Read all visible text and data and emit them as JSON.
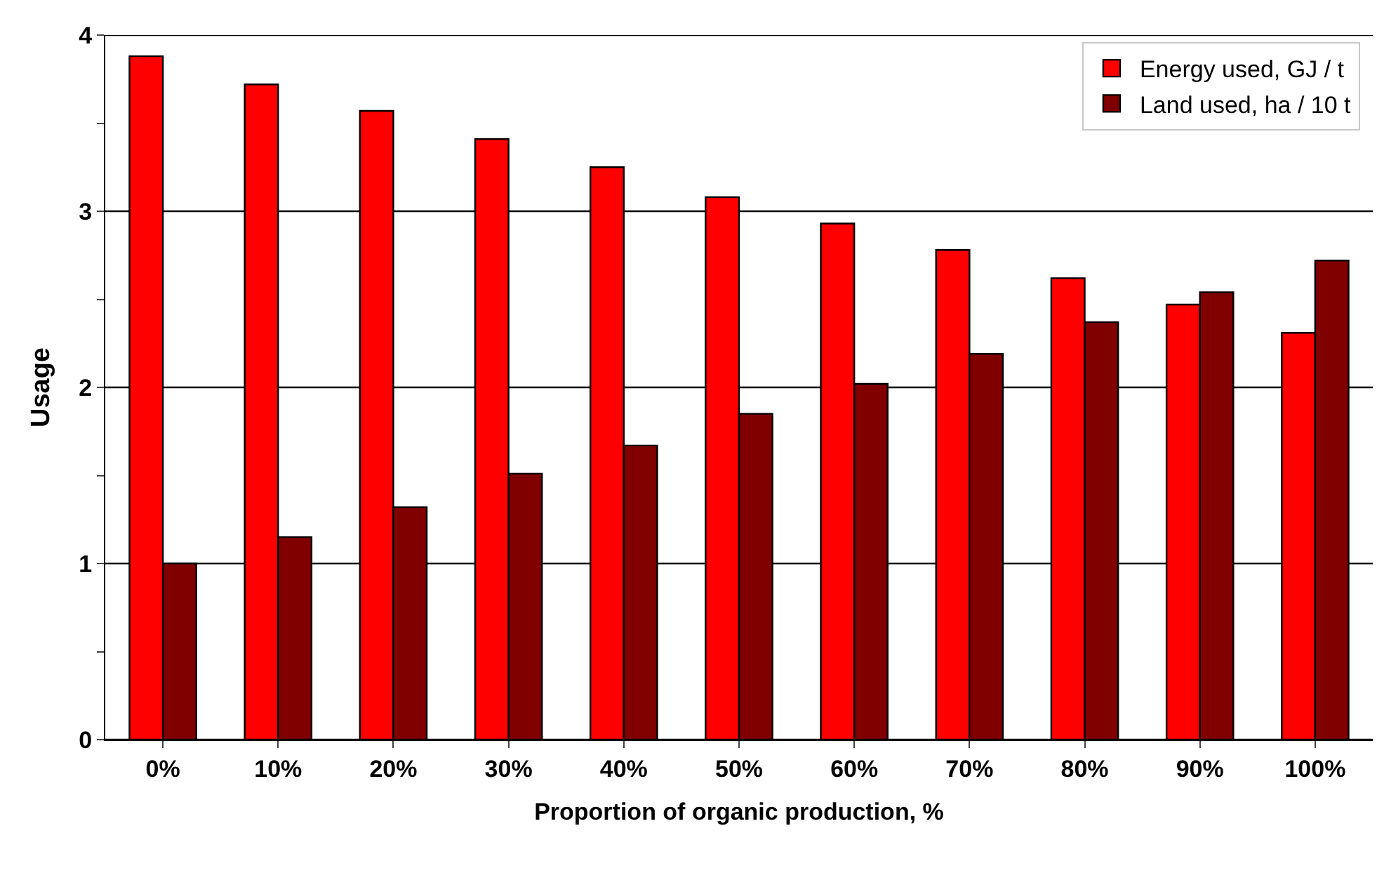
{
  "chart_data": {
    "type": "bar",
    "xlabel": "Proportion of organic production, %",
    "ylabel": "Usage",
    "categories": [
      "0%",
      "10%",
      "20%",
      "30%",
      "40%",
      "50%",
      "60%",
      "70%",
      "80%",
      "90%",
      "100%"
    ],
    "series": [
      {
        "name": "Energy used, GJ / t",
        "color": "#ff0000",
        "values": [
          3.88,
          3.72,
          3.57,
          3.41,
          3.25,
          3.08,
          2.93,
          2.78,
          2.62,
          2.47,
          2.31
        ]
      },
      {
        "name": "Land used, ha / 10 t",
        "color": "#800000",
        "values": [
          1.0,
          1.15,
          1.32,
          1.51,
          1.67,
          1.85,
          2.02,
          2.19,
          2.37,
          2.54,
          2.72
        ]
      }
    ],
    "ylim": [
      0,
      4
    ],
    "yticks": [
      0,
      {
        "value": 0.5,
        "label": null
      },
      1,
      {
        "value": 1.5,
        "label": null
      },
      2,
      {
        "value": 2.5,
        "label": null
      },
      3,
      {
        "value": 3.5,
        "label": null
      },
      4
    ],
    "grid": "y",
    "legend": "top right"
  }
}
